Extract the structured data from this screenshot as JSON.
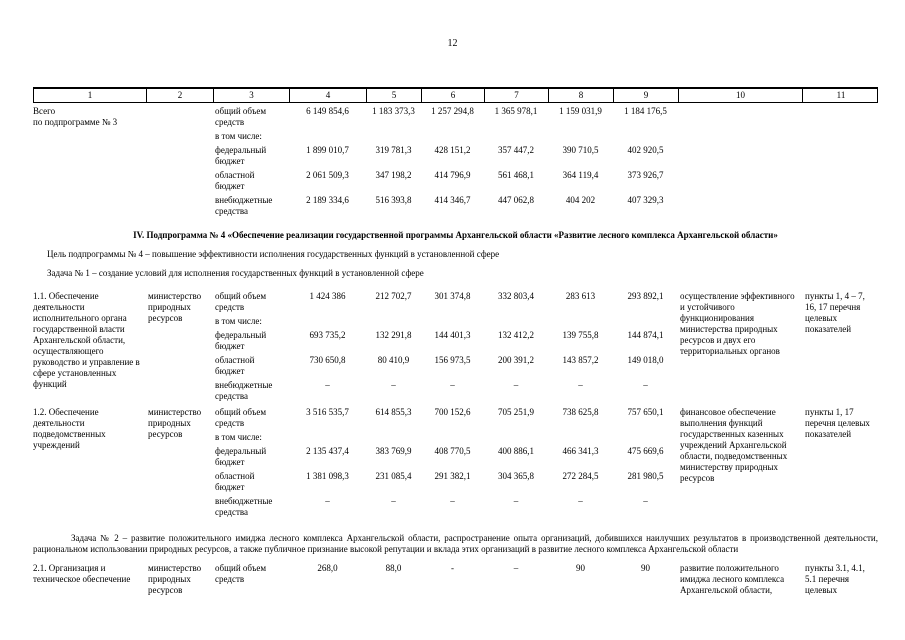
{
  "page_number": "12",
  "table_header": [
    "1",
    "2",
    "3",
    "4",
    "5",
    "6",
    "7",
    "8",
    "9",
    "10",
    "11"
  ],
  "budget_labels": {
    "total": "общий объем средств",
    "including": "в том числе:",
    "federal": "федеральный бюджет",
    "regional": "областной бюджет",
    "extra": "внебюджетные средства"
  },
  "summary_row": {
    "title": "Всего\nпо подпрограмме № 3",
    "lines": {
      "total": [
        "6 149 854,6",
        "1 183 373,3",
        "1 257 294,8",
        "1 365 978,1",
        "1 159 031,9",
        "1 184 176,5"
      ],
      "federal": [
        "1 899 010,7",
        "319 781,3",
        "428 151,2",
        "357 447,2",
        "390 710,5",
        "402 920,5"
      ],
      "regional": [
        "2 061 509,3",
        "347 198,2",
        "414 796,9",
        "561 468,1",
        "364 119,4",
        "373 926,7"
      ],
      "extra": [
        "2 189 334,6",
        "516 393,8",
        "414 346,7",
        "447 062,8",
        "404 202",
        "407 329,3"
      ]
    }
  },
  "section_iv": {
    "heading": "IV. Подпрограмма № 4 «Обеспечение реализации государственной программы Архангельской области «Развитие лесного комплекса Архангельской области»",
    "goal": "Цель подпрограммы № 4 – повышение эффективности исполнения государственных функций в установленной сфере",
    "task1": "Задача № 1 – создание условий для исполнения государственных функций в установленной сфере",
    "task2": "Задача № 2 – развитие положительного имиджа лесного комплекса Архангельской области, распространение опыта организаций, добившихся наилучших результатов в производственной деятельности, рациональном использовании природных ресурсов, а также публичное признание высокой репутации и вклада этих организаций в развитие лесного комплекса Архангельской области"
  },
  "row_1_1": {
    "title": "1.1. Обеспечение деятельности исполнительного органа государственной власти Архангельской области, осуществляющего руководство и управление в сфере установленных функций",
    "executor": "министерство природных ресурсов",
    "lines": {
      "total": [
        "1 424 386",
        "212 702,7",
        "301 374,8",
        "332 803,4",
        "283 613",
        "293 892,1"
      ],
      "federal": [
        "693 735,2",
        "132 291,8",
        "144 401,3",
        "132 412,2",
        "139 755,8",
        "144 874,1"
      ],
      "regional": [
        "730 650,8",
        "80 410,9",
        "156 973,5",
        "200 391,2",
        "143 857,2",
        "149 018,0"
      ],
      "extra": [
        "–",
        "–",
        "–",
        "–",
        "–",
        "–"
      ]
    },
    "result": "осуществление эффективного и устойчивого функционирования министерства природных ресурсов и двух его территориальных органов",
    "indicators": "пункты 1, 4 – 7, 16, 17 перечня целевых показателей"
  },
  "row_1_2": {
    "title": "1.2. Обеспечение деятельности подведомственных учреждений",
    "executor": "министерство природных ресурсов",
    "lines": {
      "total": [
        "3 516 535,7",
        "614 855,3",
        "700 152,6",
        "705 251,9",
        "738 625,8",
        "757 650,1"
      ],
      "federal": [
        "2 135 437,4",
        "383 769,9",
        "408 770,5",
        "400 886,1",
        "466 341,3",
        "475 669,6"
      ],
      "regional": [
        "1 381 098,3",
        "231 085,4",
        "291 382,1",
        "304 365,8",
        "272 284,5",
        "281 980,5"
      ],
      "extra": [
        "–",
        "–",
        "–",
        "–",
        "–",
        "–"
      ]
    },
    "result": "финансовое обеспечение выполнения функций государственных казенных учреждений Архангельской области, подведомственных министерству природных ресурсов",
    "indicators": "пункты 1, 17 перечня целевых показателей"
  },
  "row_2_1": {
    "title": "2.1. Организация и техническое обеспечение",
    "executor": "министерство природных ресурсов",
    "lines": {
      "total": [
        "268,0",
        "88,0",
        "-",
        "–",
        "90",
        "90"
      ]
    },
    "result": "развитие положительного имиджа лесного комплекса Архангельской области,",
    "indicators": "пункты 3.1, 4.1, 5.1 перечня целевых"
  }
}
